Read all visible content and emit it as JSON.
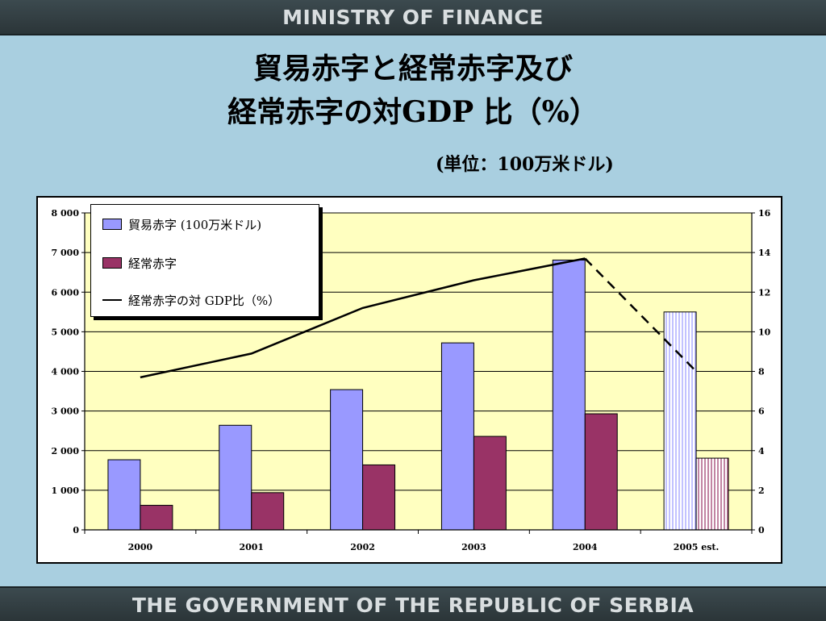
{
  "header": {
    "text": "MINISTRY OF FINANCE"
  },
  "footer": {
    "text": "THE GOVERNMENT OF THE REPUBLIC OF SERBIA"
  },
  "title_line1": "貿易赤字と経常赤字及び",
  "title_line2": "経常赤字の対GDP 比（%）",
  "unit_label": "(単位：100万米ドル)",
  "colors": {
    "trade": "#9999ff",
    "current": "#993366",
    "plot_bg": "#ffffc0",
    "frame_bg": "#ffffff"
  },
  "legend": {
    "trade": "貿易赤字 (100万米ドル)",
    "current": "経常赤字",
    "ratio": "経常赤字の対 GDP比（%）"
  },
  "chart_data": {
    "type": "bar",
    "categories": [
      "2000",
      "2001",
      "2002",
      "2003",
      "2004",
      "2005 est."
    ],
    "series": [
      {
        "name": "貿易赤字 (100万米ドル)",
        "values": [
          1770,
          2640,
          3540,
          4720,
          6810,
          5500
        ],
        "axis": "left"
      },
      {
        "name": "経常赤字",
        "values": [
          620,
          940,
          1640,
          2360,
          2930,
          1810
        ],
        "axis": "left"
      },
      {
        "name": "経常赤字の対 GDP比（%）",
        "type": "line",
        "values": [
          7.7,
          8.9,
          11.2,
          12.6,
          13.7,
          8.0
        ],
        "axis": "right",
        "estimate_dashed_from_index": 4
      }
    ],
    "estimate_index": 5,
    "y_left": {
      "ylim": [
        0,
        8000
      ],
      "ticks": [
        "0",
        "1 000",
        "2 000",
        "3 000",
        "4 000",
        "5 000",
        "6 000",
        "7 000",
        "8 000"
      ]
    },
    "y_right": {
      "ylim": [
        0,
        16
      ],
      "ticks": [
        "0",
        "2",
        "4",
        "6",
        "8",
        "10",
        "12",
        "14",
        "16"
      ]
    },
    "grid": true
  }
}
